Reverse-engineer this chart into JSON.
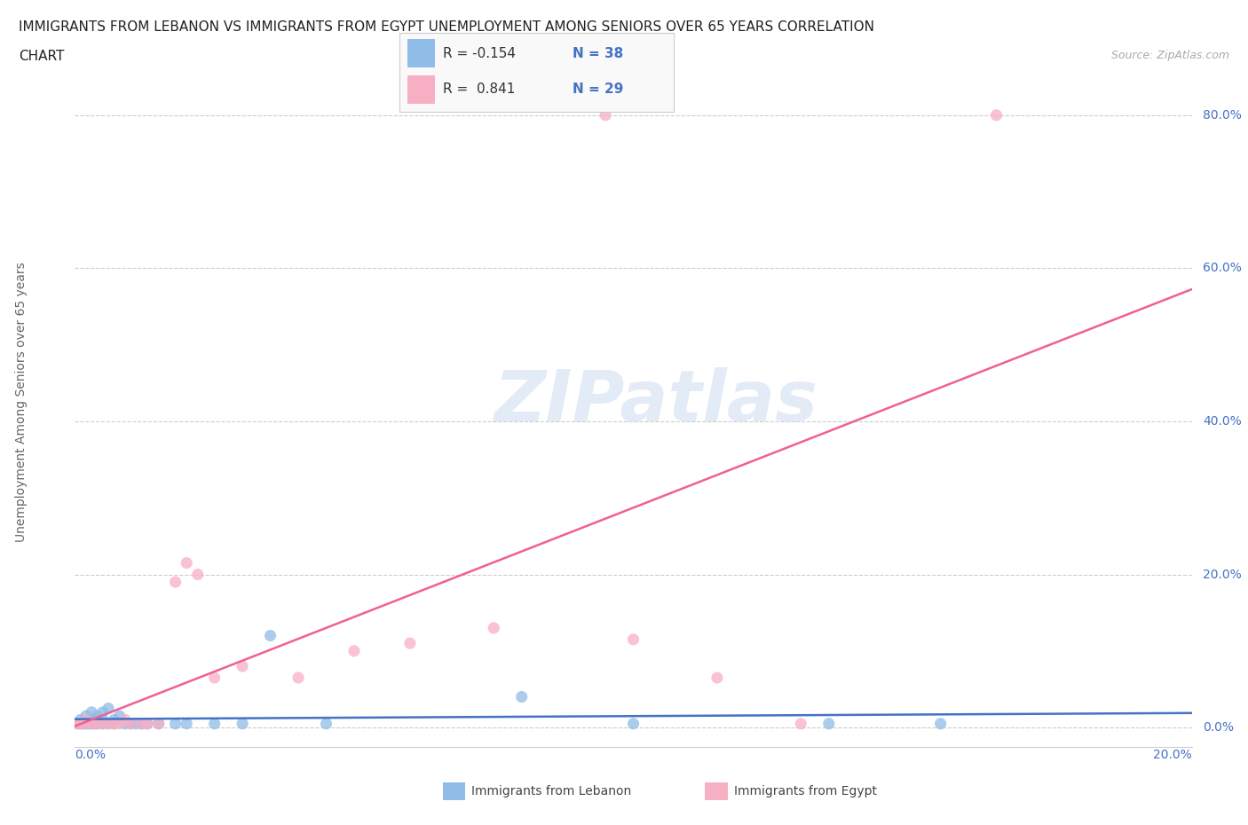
{
  "title_line1": "IMMIGRANTS FROM LEBANON VS IMMIGRANTS FROM EGYPT UNEMPLOYMENT AMONG SENIORS OVER 65 YEARS CORRELATION",
  "title_line2": "CHART",
  "source": "Source: ZipAtlas.com",
  "ylabel": "Unemployment Among Seniors over 65 years",
  "ytick_labels": [
    "0.0%",
    "20.0%",
    "40.0%",
    "60.0%",
    "80.0%"
  ],
  "ytick_values": [
    0.0,
    0.2,
    0.4,
    0.6,
    0.8
  ],
  "xtick_labels": [
    "0.0%",
    "20.0%"
  ],
  "xmin": 0.0,
  "xmax": 0.2,
  "ymin": -0.025,
  "ymax": 0.875,
  "lebanon_color": "#90bce8",
  "egypt_color": "#f7afc4",
  "lebanon_line_color": "#4472c4",
  "egypt_line_color": "#f06090",
  "legend_R_lebanon": "-0.154",
  "legend_N_lebanon": "38",
  "legend_R_egypt": "0.841",
  "legend_N_egypt": "29",
  "watermark": "ZIPatlas",
  "background_color": "#ffffff",
  "grid_color": "#cccccc",
  "label_color": "#4472c4",
  "lebanon_scatter_x": [
    0.0005,
    0.001,
    0.001,
    0.0015,
    0.002,
    0.002,
    0.0025,
    0.003,
    0.003,
    0.003,
    0.0035,
    0.004,
    0.004,
    0.004,
    0.005,
    0.005,
    0.005,
    0.006,
    0.006,
    0.007,
    0.007,
    0.008,
    0.009,
    0.01,
    0.011,
    0.012,
    0.013,
    0.015,
    0.018,
    0.02,
    0.025,
    0.03,
    0.035,
    0.045,
    0.08,
    0.1,
    0.135,
    0.155
  ],
  "lebanon_scatter_y": [
    0.005,
    0.005,
    0.01,
    0.005,
    0.005,
    0.015,
    0.005,
    0.005,
    0.01,
    0.02,
    0.005,
    0.005,
    0.01,
    0.015,
    0.005,
    0.01,
    0.02,
    0.005,
    0.025,
    0.005,
    0.01,
    0.015,
    0.005,
    0.005,
    0.005,
    0.005,
    0.005,
    0.005,
    0.005,
    0.005,
    0.005,
    0.005,
    0.12,
    0.005,
    0.04,
    0.005,
    0.005,
    0.005
  ],
  "egypt_scatter_x": [
    0.0005,
    0.001,
    0.002,
    0.002,
    0.003,
    0.004,
    0.005,
    0.006,
    0.007,
    0.008,
    0.009,
    0.01,
    0.012,
    0.013,
    0.015,
    0.018,
    0.02,
    0.022,
    0.025,
    0.03,
    0.04,
    0.05,
    0.06,
    0.075,
    0.095,
    0.1,
    0.115,
    0.13,
    0.165
  ],
  "egypt_scatter_y": [
    0.005,
    0.005,
    0.005,
    0.01,
    0.005,
    0.005,
    0.005,
    0.005,
    0.005,
    0.005,
    0.01,
    0.005,
    0.005,
    0.005,
    0.005,
    0.19,
    0.215,
    0.2,
    0.065,
    0.08,
    0.065,
    0.1,
    0.11,
    0.13,
    0.8,
    0.115,
    0.065,
    0.005,
    0.8
  ],
  "legend_label_lebanon": "Immigrants from Lebanon",
  "legend_label_egypt": "Immigrants from Egypt"
}
